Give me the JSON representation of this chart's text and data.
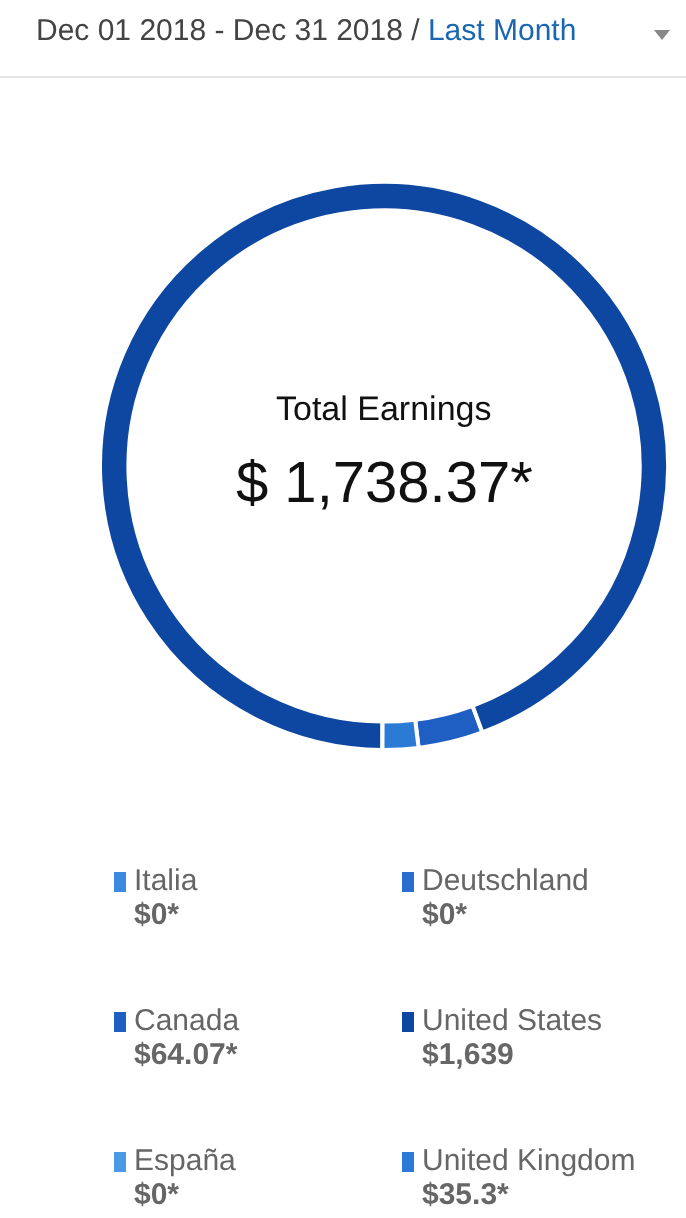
{
  "chart_data": {
    "type": "donut",
    "title": "Dec 01 2018 - Dec 31 2018 /",
    "subtitle": "Last Month",
    "annotations": [
      "Total Earnings",
      "$ 1,738.37*"
    ],
    "categories": [
      "Italia",
      "Deutschland",
      "Canada",
      "United States",
      "España",
      "United Kingdom"
    ],
    "values": [
      0,
      0,
      64.07,
      1639,
      0,
      35.3
    ],
    "value_labels": [
      "$0*",
      "$0*",
      "$64.07*",
      "$1,639",
      "$0*",
      "$35.3*"
    ],
    "legend": "bottom",
    "colors": [
      "#3a8be0",
      "#2a6fd0",
      "#1f5fc4",
      "#0d47a1",
      "#4a9ae6",
      "#2b7ad6"
    ]
  }
}
